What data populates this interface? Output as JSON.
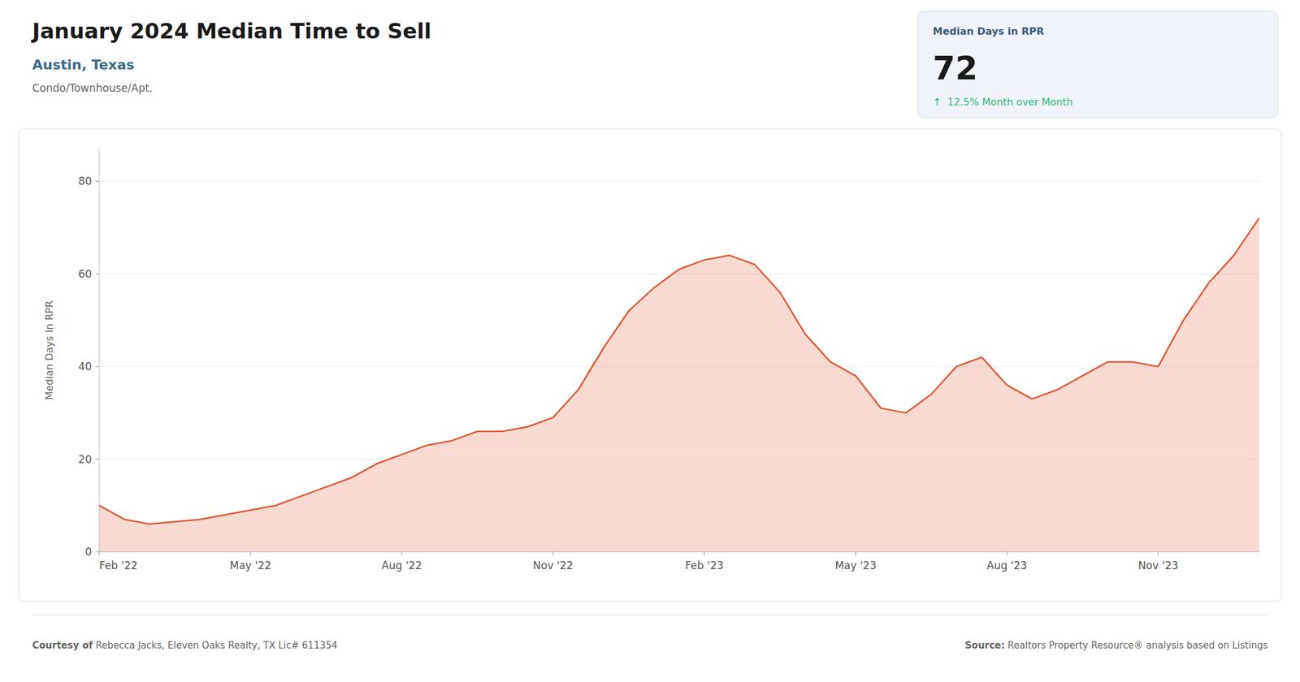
{
  "chart_data": {
    "type": "area",
    "title": "January 2024 Median Time to Sell",
    "subtitle": "Austin, Texas",
    "annotations": [
      "Condo/Townhouse/Apt.",
      "Median Days in RPR",
      "72",
      "↑  12.5% Month over Month",
      "Courtesy of",
      " Rebecca Jacks, Eleven Oaks Realty, TX Lic# 611354",
      "Source:",
      " Realtors Property Resource® analysis based on Listings"
    ],
    "y_label": "Median Days In RPR",
    "color": "#e05535",
    "grid": true,
    "x": [
      0,
      0.5,
      1,
      1.5,
      2,
      2.5,
      3,
      3.5,
      4,
      4.5,
      5,
      5.5,
      6,
      6.5,
      7,
      7.5,
      8,
      8.5,
      9,
      9.5,
      10,
      10.5,
      11,
      11.5,
      12,
      12.5,
      13,
      13.5,
      14,
      14.5,
      15,
      15.5,
      16,
      16.5,
      17,
      17.5,
      18,
      18.5,
      19,
      19.5,
      20,
      20.5,
      21,
      21.5,
      22,
      22.5,
      23
    ],
    "values": [
      10,
      7,
      6,
      6.5,
      7,
      8,
      9,
      10,
      12,
      14,
      16,
      19,
      21,
      23,
      24,
      26,
      26,
      27,
      29,
      35,
      44,
      52,
      57,
      61,
      63,
      64,
      62,
      56,
      47,
      41,
      38,
      31,
      30,
      34,
      40,
      42,
      36,
      33,
      35,
      38,
      41,
      41,
      40,
      50,
      58,
      64,
      72
    ],
    "xlim": [
      0,
      23
    ],
    "xticks": [
      {
        "value": 0,
        "label": "Feb '22"
      },
      {
        "value": 3,
        "label": "May '22"
      },
      {
        "value": 6,
        "label": "Aug '22"
      },
      {
        "value": 9,
        "label": "Nov '22"
      },
      {
        "value": 12,
        "label": "Feb '23"
      },
      {
        "value": 15,
        "label": "May '23"
      },
      {
        "value": 18,
        "label": "Aug '23"
      },
      {
        "value": 21,
        "label": "Nov '23"
      }
    ],
    "ylim": [
      0,
      87
    ],
    "yticks": [
      0,
      20,
      40,
      60,
      80
    ]
  }
}
